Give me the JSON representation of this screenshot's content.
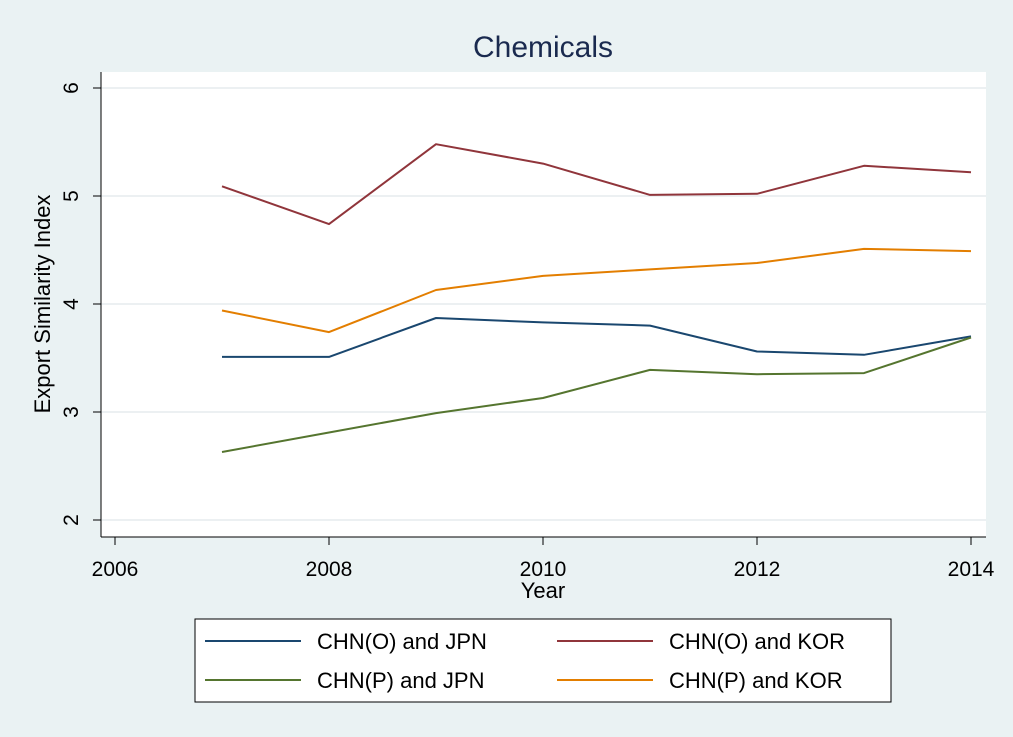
{
  "chart_data": {
    "type": "line",
    "title": "Chemicals",
    "xlabel": "Year",
    "ylabel": "Export Similarity Index",
    "xlim": [
      2006,
      2014
    ],
    "ylim": [
      2,
      6
    ],
    "xticks": [
      2006,
      2008,
      2010,
      2012,
      2014
    ],
    "yticks": [
      2,
      3,
      4,
      5,
      6
    ],
    "grid": true,
    "legend_position": "bottom",
    "x": [
      2007,
      2008,
      2009,
      2010,
      2011,
      2012,
      2013,
      2014
    ],
    "series": [
      {
        "name": "CHN(O) and JPN",
        "color": "#1a476f",
        "values": [
          3.51,
          3.51,
          3.87,
          3.83,
          3.8,
          3.56,
          3.53,
          3.7
        ]
      },
      {
        "name": "CHN(O) and KOR",
        "color": "#90353b",
        "values": [
          5.09,
          4.74,
          5.48,
          5.3,
          5.01,
          5.02,
          5.28,
          5.22
        ]
      },
      {
        "name": "CHN(P) and JPN",
        "color": "#55752f",
        "values": [
          2.63,
          2.81,
          2.99,
          3.13,
          3.39,
          3.35,
          3.36,
          3.69
        ]
      },
      {
        "name": "CHN(P) and KOR",
        "color": "#e37e00",
        "values": [
          3.94,
          3.74,
          4.13,
          4.26,
          4.32,
          4.38,
          4.51,
          4.49
        ]
      }
    ]
  }
}
